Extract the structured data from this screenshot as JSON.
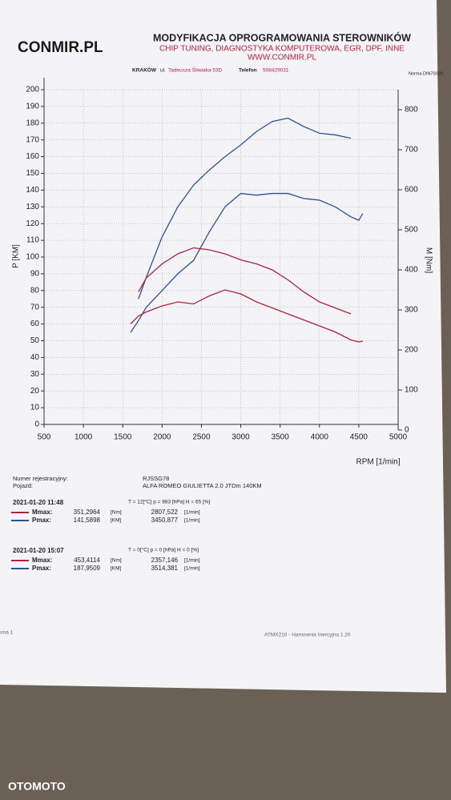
{
  "header": {
    "logo": "CONMIR.PL",
    "title": "MODYFIKACJA OPROGRAMOWANIA STEROWNIKÓW",
    "subtitle": "CHIP TUNING, DIAGNOSTYKA KOMPUTEROWA, EGR, DPF, INNE",
    "website": "WWW.CONMIR.PL",
    "city": "KRAKÓW",
    "street_prefix": "ul.",
    "street": "Tadeusza Śliwiaka 53D",
    "phone_label": "Telefon",
    "phone": "508429031",
    "norm": "Norma DIN70020"
  },
  "vehicle": {
    "reg_label": "Numer rejestracyjny:",
    "reg": "RJSSG78",
    "car_label": "Pojazd:",
    "car": "ALFA ROMEO  GIULIETTA 2.0 JTDm  140KM"
  },
  "measurements": [
    {
      "date": "2021-01-20  11:48",
      "conditions": "T = 12[°C]  p = 983 [hPa]  H = 65 [%]",
      "rows": [
        {
          "label": "Mmax:",
          "value": "351,2964",
          "unit": "[Nm]",
          "rpm": "2807,522",
          "rpm_unit": "[1/min]"
        },
        {
          "label": "Pmax:",
          "value": "141,5898",
          "unit": "[KM]",
          "rpm": "3450,877",
          "rpm_unit": "[1/min]"
        }
      ]
    },
    {
      "date": "2021-01-20  15:07",
      "conditions": "T = 0[°C]  p = 0 [hPa]  H = 0 [%]",
      "rows": [
        {
          "label": "Mmax:",
          "value": "453,4114",
          "unit": "[Nm]",
          "rpm": "2357,146",
          "rpm_unit": "[1/min]"
        },
        {
          "label": "Pmax:",
          "value": "187,9509",
          "unit": "[KM]",
          "rpm": "3514,381",
          "rpm_unit": "[1/min]"
        }
      ]
    }
  ],
  "footer": {
    "page": "ona 1",
    "software": "ATMX210 - Hamownia Inercyjna 1.20",
    "watermark": "OTOMOTO"
  },
  "chart_data": {
    "type": "line",
    "y_label": "P [KM]",
    "y2_label": "M [Nm]",
    "x_label": "RPM [1/min]",
    "x": [
      1600,
      1700,
      1800,
      2000,
      2200,
      2400,
      2600,
      2800,
      3000,
      3200,
      3400,
      3600,
      3800,
      4000,
      4200,
      4400,
      4500,
      4550
    ],
    "series": [
      {
        "color": "#2e4f9c",
        "values": [
          null,
          75,
          88,
          112,
          130,
          143,
          152,
          160,
          167,
          175,
          181,
          183,
          178,
          174,
          173,
          171,
          null,
          null
        ]
      },
      {
        "color": "#2e4f9c",
        "values": [
          55,
          62,
          70,
          80,
          90,
          98,
          115,
          130,
          138,
          137,
          138,
          138,
          135,
          134,
          130,
          124,
          122,
          126
        ]
      },
      {
        "color": "#b02040",
        "axis": "y2",
        "values": [
          null,
          345,
          380,
          415,
          440,
          455,
          450,
          440,
          425,
          415,
          400,
          375,
          345,
          320,
          305,
          290,
          null,
          null
        ]
      },
      {
        "color": "#b02040",
        "axis": "y2",
        "values": [
          265,
          285,
          295,
          310,
          320,
          315,
          335,
          350,
          340,
          320,
          305,
          290,
          275,
          260,
          245,
          225,
          220,
          222
        ]
      }
    ],
    "xlim": [
      500,
      5000
    ],
    "xticks": [
      500,
      1000,
      1500,
      2000,
      2500,
      3000,
      3500,
      4000,
      4500,
      5000
    ],
    "ylim": [
      0,
      200
    ],
    "yticks": [
      0,
      10,
      20,
      30,
      40,
      50,
      60,
      70,
      80,
      90,
      100,
      110,
      120,
      130,
      140,
      150,
      160,
      170,
      180,
      190,
      200
    ],
    "y2lim": [
      0,
      800
    ],
    "y2ticks": [
      0,
      100,
      200,
      300,
      400,
      500,
      600,
      700,
      800
    ],
    "grid": true
  }
}
